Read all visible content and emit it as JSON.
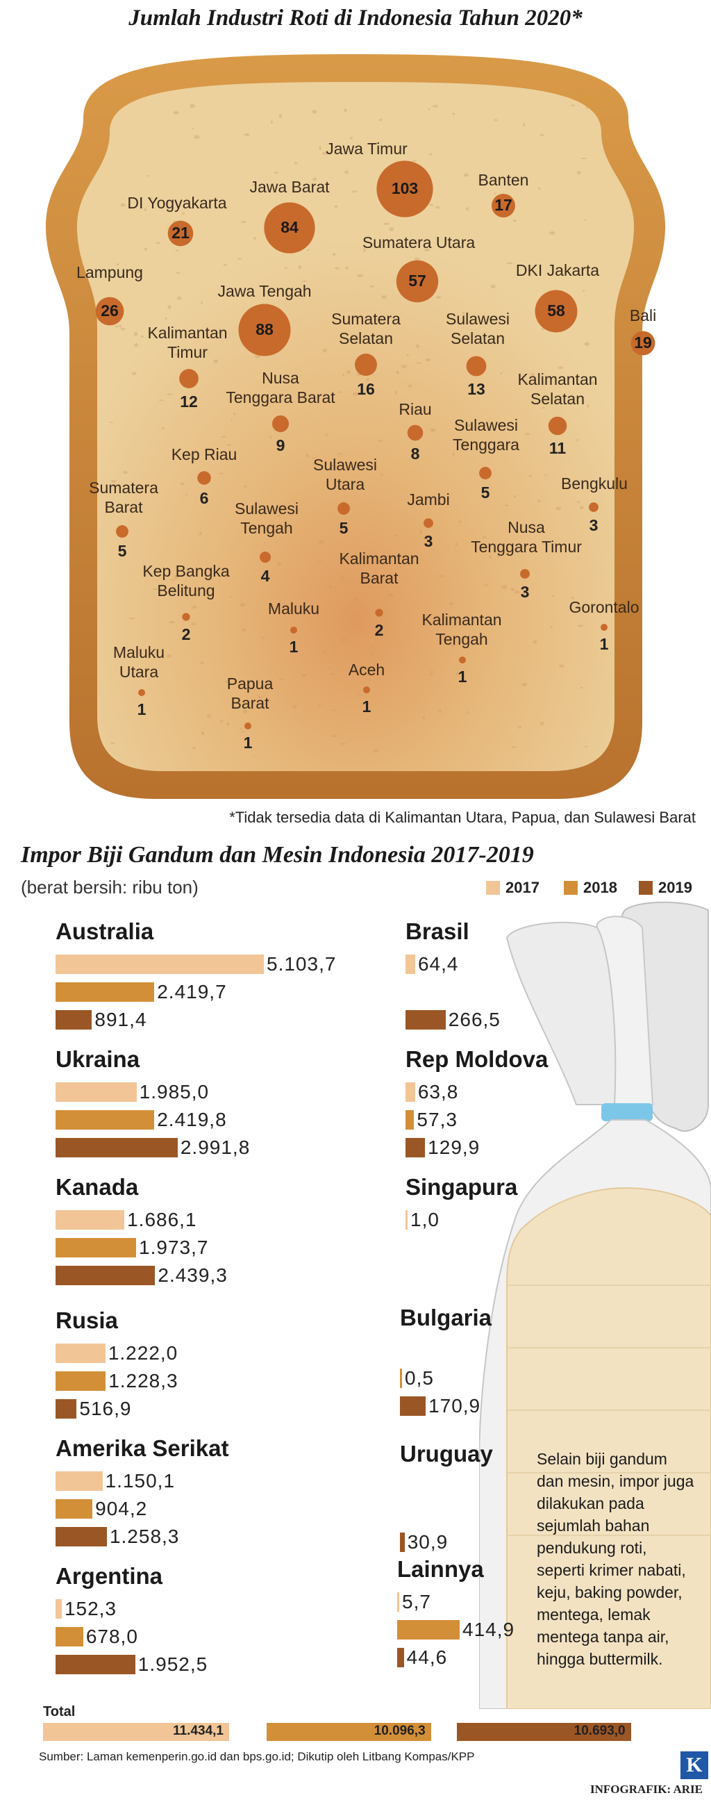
{
  "title": "Jumlah Industri Roti di Indonesia Tahun 2020*",
  "footnote": "*Tidak tersedia data di Kalimantan Utara, Papua, dan Sulawesi Barat",
  "chart_data": [
    {
      "type": "bubble",
      "title": "Jumlah Industri Roti di Indonesia Tahun 2020*",
      "points": [
        {
          "label": "Jawa Timur",
          "value": 103
        },
        {
          "label": "Banten",
          "value": 17
        },
        {
          "label": "DI Yogyakarta",
          "value": 21
        },
        {
          "label": "Jawa Barat",
          "value": 84
        },
        {
          "label": "Sumatera Utara",
          "value": 57
        },
        {
          "label": "DKI Jakarta",
          "value": 58
        },
        {
          "label": "Lampung",
          "value": 26
        },
        {
          "label": "Jawa Tengah",
          "value": 88
        },
        {
          "label": "Bali",
          "value": 19
        },
        {
          "label": "Kalimantan\nTimur",
          "value": 12
        },
        {
          "label": "Sumatera\nSelatan",
          "value": 16
        },
        {
          "label": "Sulawesi\nSelatan",
          "value": 13
        },
        {
          "label": "Nusa\nTenggara Barat",
          "value": 9
        },
        {
          "label": "Riau",
          "value": 8
        },
        {
          "label": "Kalimantan\nSelatan",
          "value": 11
        },
        {
          "label": "Kep Riau",
          "value": 6
        },
        {
          "label": "Sulawesi\nTenggara",
          "value": 5
        },
        {
          "label": "Sulawesi\nUtara",
          "value": 5
        },
        {
          "label": "Jambi",
          "value": 3
        },
        {
          "label": "Bengkulu",
          "value": 3
        },
        {
          "label": "Sumatera\nBarat",
          "value": 5
        },
        {
          "label": "Sulawesi\nTengah",
          "value": 4
        },
        {
          "label": "Nusa\nTenggara Timur",
          "value": 3
        },
        {
          "label": "Kep Bangka\nBelitung",
          "value": 2
        },
        {
          "label": "Kalimantan\nBarat",
          "value": 2
        },
        {
          "label": "Maluku",
          "value": 1
        },
        {
          "label": "Kalimantan\nTengah",
          "value": 1
        },
        {
          "label": "Gorontalo",
          "value": 1
        },
        {
          "label": "Maluku\nUtara",
          "value": 1
        },
        {
          "label": "Papua\nBarat",
          "value": 1
        },
        {
          "label": "Aceh",
          "value": 1
        }
      ]
    },
    {
      "type": "bar",
      "title": "Impor Biji Gandum dan Mesin Indonesia 2017-2019",
      "subtitle": "(berat bersih: ribu ton)",
      "series_names": [
        "2017",
        "2018",
        "2019"
      ],
      "colors": [
        "#f2c597",
        "#d38f37",
        "#9b5625"
      ],
      "countries": [
        {
          "name": "Australia",
          "values": [
            5103.7,
            2419.7,
            891.4
          ],
          "labels": [
            "5.103,7",
            "2.419,7",
            "891,4"
          ]
        },
        {
          "name": "Ukraina",
          "values": [
            1985.0,
            2419.8,
            2991.8
          ],
          "labels": [
            "1.985,0",
            "2.419,8",
            "2.991,8"
          ]
        },
        {
          "name": "Kanada",
          "values": [
            1686.1,
            1973.7,
            2439.3
          ],
          "labels": [
            "1.686,1",
            "1.973,7",
            "2.439,3"
          ]
        },
        {
          "name": "Rusia",
          "values": [
            1222.0,
            1228.3,
            516.9
          ],
          "labels": [
            "1.222,0",
            "1.228,3",
            "516,9"
          ]
        },
        {
          "name": "Amerika Serikat",
          "values": [
            1150.1,
            904.2,
            1258.3
          ],
          "labels": [
            "1.150,1",
            "904,2",
            "1.258,3"
          ]
        },
        {
          "name": "Argentina",
          "values": [
            152.3,
            678.0,
            1952.5
          ],
          "labels": [
            "152,3",
            "678,0",
            "1.952,5"
          ]
        },
        {
          "name": "Brasil",
          "values": [
            64.4,
            null,
            266.5
          ],
          "labels": [
            "64,4",
            "",
            "266,5"
          ]
        },
        {
          "name": "Rep Moldova",
          "values": [
            63.8,
            57.3,
            129.9
          ],
          "labels": [
            "63,8",
            "57,3",
            "129,9"
          ]
        },
        {
          "name": "Singapura",
          "values": [
            1.0,
            null,
            null
          ],
          "labels": [
            "1,0",
            "",
            ""
          ]
        },
        {
          "name": "Bulgaria",
          "values": [
            null,
            0.5,
            170.9
          ],
          "labels": [
            "",
            "0,5",
            "170,9"
          ]
        },
        {
          "name": "Uruguay",
          "values": [
            null,
            null,
            30.9
          ],
          "labels": [
            "",
            "",
            "30,9"
          ]
        },
        {
          "name": "Lainnya",
          "values": [
            5.7,
            414.9,
            44.6
          ],
          "labels": [
            "5,7",
            "414,9",
            "44,6"
          ]
        }
      ],
      "total_label": "Total",
      "totals": [
        11434.1,
        10096.3,
        10693.0
      ],
      "total_labels": [
        "11.434,1",
        "10.096,3",
        "10.693,0"
      ]
    }
  ],
  "side_text": "Selain biji gandum dan mesin, impor juga dilakukan pada sejumlah bahan pendukung roti, seperti krimer nabati, keju, baking powder, mentega, lemak mentega tanpa air, hingga buttermilk.",
  "source": "Sumber: Laman kemenperin.go.id dan bps.go.id; Dikutip oleh Litbang Kompas/KPP",
  "credit": "INFOGRAFIK: ARIE",
  "logo_letter": "K",
  "colors": {
    "bubble": "#c86a2c",
    "bread_crust": "#c9853d",
    "bread_inner": "#e9c98f"
  }
}
